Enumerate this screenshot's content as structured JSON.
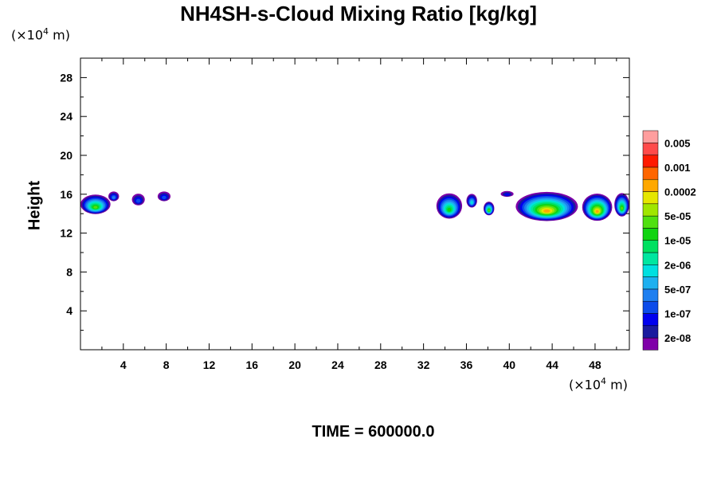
{
  "chart_data": {
    "type": "heatmap",
    "title": "NH4SH-s-Cloud Mixing Ratio [kg/kg]",
    "ylabel": "Height",
    "y_unit": {
      "pre": "(×10",
      "exp": "4",
      "post": " m)"
    },
    "x_unit": {
      "pre": "(×10",
      "exp": "4",
      "post": " m)"
    },
    "xlim": [
      0,
      51.2
    ],
    "ylim": [
      0,
      30
    ],
    "xticks": [
      4,
      8,
      12,
      16,
      20,
      24,
      28,
      32,
      36,
      40,
      44,
      48
    ],
    "yticks": [
      4,
      8,
      12,
      16,
      20,
      24,
      28
    ],
    "colorbar": {
      "colors": [
        "#7f00a8",
        "#1a1a9e",
        "#0000ee",
        "#0b4bea",
        "#1e7ff0",
        "#1eb0f0",
        "#00e0e0",
        "#00e6a0",
        "#00e060",
        "#10d410",
        "#50e010",
        "#a0e600",
        "#e6e600",
        "#ffa800",
        "#ff6600",
        "#ff1a00",
        "#ff4a4a",
        "#ff9e9e"
      ],
      "labels": [
        "2e-08",
        "1e-07",
        "5e-07",
        "2e-06",
        "1e-05",
        "5e-05",
        "0.0002",
        "0.001",
        "0.005"
      ]
    },
    "cloud_patches": [
      {
        "x": [
          0.0,
          2.8
        ],
        "y": [
          14.2,
          16.2
        ],
        "peak_level": 10
      },
      {
        "x": [
          2.6,
          3.6
        ],
        "y": [
          15.4,
          16.4
        ],
        "peak_level": 4
      },
      {
        "x": [
          4.8,
          6.0
        ],
        "y": [
          15.0,
          16.2
        ],
        "peak_level": 3
      },
      {
        "x": [
          7.2,
          8.4
        ],
        "y": [
          15.4,
          16.4
        ],
        "peak_level": 3
      },
      {
        "x": [
          33.2,
          35.6
        ],
        "y": [
          13.8,
          16.4
        ],
        "peak_level": 9
      },
      {
        "x": [
          36.0,
          37.0
        ],
        "y": [
          14.8,
          16.2
        ],
        "peak_level": 6
      },
      {
        "x": [
          37.6,
          38.6
        ],
        "y": [
          14.0,
          15.4
        ],
        "peak_level": 10
      },
      {
        "x": [
          39.2,
          40.4
        ],
        "y": [
          15.8,
          16.4
        ],
        "peak_level": 2
      },
      {
        "x": [
          40.6,
          46.4
        ],
        "y": [
          13.6,
          16.6
        ],
        "peak_level": 13
      },
      {
        "x": [
          46.8,
          49.6
        ],
        "y": [
          13.6,
          16.4
        ],
        "peak_level": 13
      },
      {
        "x": [
          49.8,
          51.2
        ],
        "y": [
          14.0,
          16.4
        ],
        "peak_level": 10
      }
    ]
  },
  "footer": {
    "time_label": "TIME = 600000.0"
  }
}
